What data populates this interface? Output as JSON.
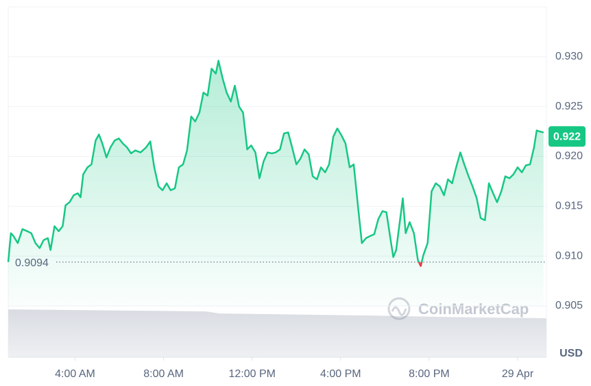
{
  "chart_data": {
    "type": "line",
    "color": "#16c784",
    "down_color": "#ea3943",
    "y_unit": "USD",
    "watermark": "CoinMarketCap",
    "open_value": 0.9094,
    "current_price": 0.922,
    "xlim": [
      0.98,
      25.3
    ],
    "ylim": [
      0.905,
      0.935
    ],
    "xticks": [
      {
        "value": 4,
        "label": "4:00 AM"
      },
      {
        "value": 8,
        "label": "8:00 AM"
      },
      {
        "value": 12,
        "label": "12:00 PM"
      },
      {
        "value": 16,
        "label": "4:00 PM"
      },
      {
        "value": 20,
        "label": "8:00 PM"
      },
      {
        "value": 24,
        "label": "29 Apr"
      }
    ],
    "yticks": [
      0.905,
      {
        "value": 0.91,
        "label": "0.910"
      },
      0.915,
      {
        "value": 0.92,
        "label": "0.920"
      },
      0.925,
      {
        "value": 0.93,
        "label": "0.930"
      }
    ],
    "grid": true,
    "x": [
      0.98,
      1.1,
      1.22,
      1.41,
      1.62,
      1.84,
      2.02,
      2.21,
      2.4,
      2.58,
      2.77,
      2.89,
      3.07,
      3.26,
      3.44,
      3.57,
      3.75,
      3.94,
      4.12,
      4.25,
      4.37,
      4.56,
      4.74,
      4.93,
      5.08,
      5.23,
      5.42,
      5.6,
      5.79,
      5.98,
      6.16,
      6.35,
      6.53,
      6.72,
      6.96,
      7.21,
      7.4,
      7.58,
      7.77,
      7.95,
      8.14,
      8.32,
      8.51,
      8.69,
      8.88,
      9.06,
      9.25,
      9.43,
      9.62,
      9.8,
      9.99,
      10.17,
      10.36,
      10.48,
      10.67,
      10.85,
      11.04,
      11.22,
      11.41,
      11.59,
      11.78,
      11.96,
      12.15,
      12.33,
      12.52,
      12.7,
      12.89,
      13.07,
      13.26,
      13.44,
      13.63,
      13.81,
      14.0,
      14.19,
      14.37,
      14.56,
      14.74,
      14.93,
      15.11,
      15.3,
      15.48,
      15.67,
      15.85,
      16.04,
      16.22,
      16.41,
      16.59,
      16.78,
      16.96,
      17.15,
      17.33,
      17.52,
      17.7,
      17.89,
      18.07,
      18.26,
      18.38,
      18.51,
      18.69,
      18.81,
      18.94,
      19.12,
      19.31,
      19.49,
      19.62,
      19.74,
      19.93,
      20.11,
      20.3,
      20.48,
      20.67,
      20.85,
      21.04,
      21.22,
      21.41,
      21.59,
      21.78,
      21.96,
      22.15,
      22.33,
      22.52,
      22.7,
      22.89,
      23.07,
      23.26,
      23.44,
      23.63,
      23.81,
      24.0,
      24.19,
      24.37,
      24.56,
      24.74,
      24.86,
      24.99,
      25.17
    ],
    "values": [
      0.9094,
      0.9123,
      0.912,
      0.9113,
      0.9127,
      0.9125,
      0.9123,
      0.9113,
      0.9108,
      0.9116,
      0.9118,
      0.9106,
      0.913,
      0.9125,
      0.913,
      0.9151,
      0.9154,
      0.9161,
      0.9163,
      0.9159,
      0.9182,
      0.9189,
      0.9192,
      0.9216,
      0.9222,
      0.9213,
      0.9199,
      0.9209,
      0.9216,
      0.9218,
      0.9213,
      0.9209,
      0.9203,
      0.9206,
      0.9204,
      0.9209,
      0.9215,
      0.9189,
      0.917,
      0.9166,
      0.9173,
      0.9166,
      0.9168,
      0.9189,
      0.9192,
      0.9206,
      0.924,
      0.9235,
      0.9244,
      0.9264,
      0.9261,
      0.9288,
      0.9283,
      0.9296,
      0.9278,
      0.9264,
      0.9255,
      0.9271,
      0.925,
      0.9244,
      0.9207,
      0.9211,
      0.9204,
      0.9178,
      0.9195,
      0.9204,
      0.9203,
      0.9204,
      0.9207,
      0.9223,
      0.9224,
      0.9209,
      0.9192,
      0.9198,
      0.9207,
      0.9202,
      0.918,
      0.9177,
      0.9189,
      0.9184,
      0.9192,
      0.922,
      0.9228,
      0.9221,
      0.9213,
      0.9189,
      0.9192,
      0.9151,
      0.9113,
      0.9118,
      0.912,
      0.9122,
      0.9137,
      0.9145,
      0.9144,
      0.9116,
      0.9099,
      0.9106,
      0.9137,
      0.9158,
      0.9123,
      0.9134,
      0.9123,
      0.9096,
      0.909,
      0.9101,
      0.9113,
      0.9165,
      0.9173,
      0.917,
      0.9161,
      0.9177,
      0.9173,
      0.9189,
      0.9204,
      0.9192,
      0.918,
      0.917,
      0.9158,
      0.9138,
      0.9136,
      0.9173,
      0.9163,
      0.9154,
      0.9165,
      0.918,
      0.9178,
      0.9182,
      0.9189,
      0.9184,
      0.9191,
      0.9192,
      0.9209,
      0.9226,
      0.9225,
      0.9224
    ]
  }
}
